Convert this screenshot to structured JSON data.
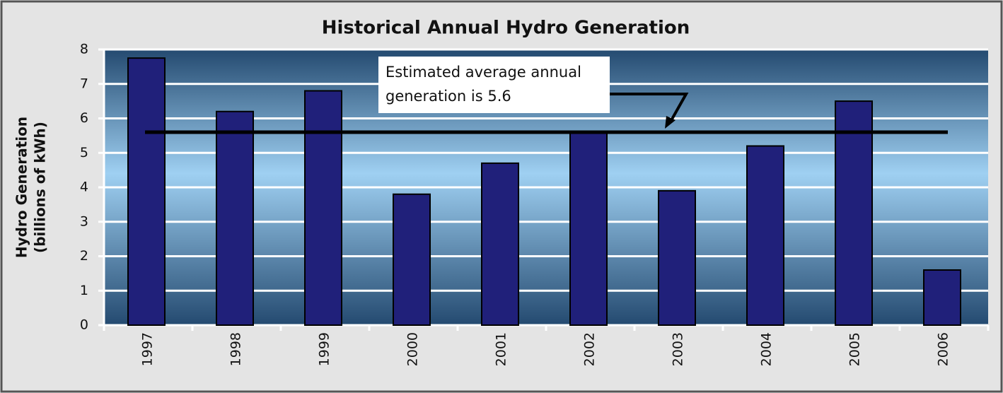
{
  "chart_data": {
    "type": "bar",
    "title": "Historical Annual Hydro Generation",
    "y_label": [
      "Hydro Generation",
      "(billions of kWh)"
    ],
    "categories": [
      "1997",
      "1998",
      "1999",
      "2000",
      "2001",
      "2002",
      "2003",
      "2004",
      "2005",
      "2006"
    ],
    "values": [
      7.75,
      6.2,
      6.8,
      3.8,
      4.7,
      5.6,
      3.9,
      5.2,
      6.5,
      1.6
    ],
    "color": "#20207a",
    "reference_line": 5.6,
    "annotation": [
      "Estimated average annual",
      "generation is 5.6"
    ],
    "ylim": [
      0,
      8
    ],
    "yticks": [
      0,
      1,
      2,
      3,
      4,
      5,
      6,
      7,
      8
    ],
    "grid": true
  }
}
